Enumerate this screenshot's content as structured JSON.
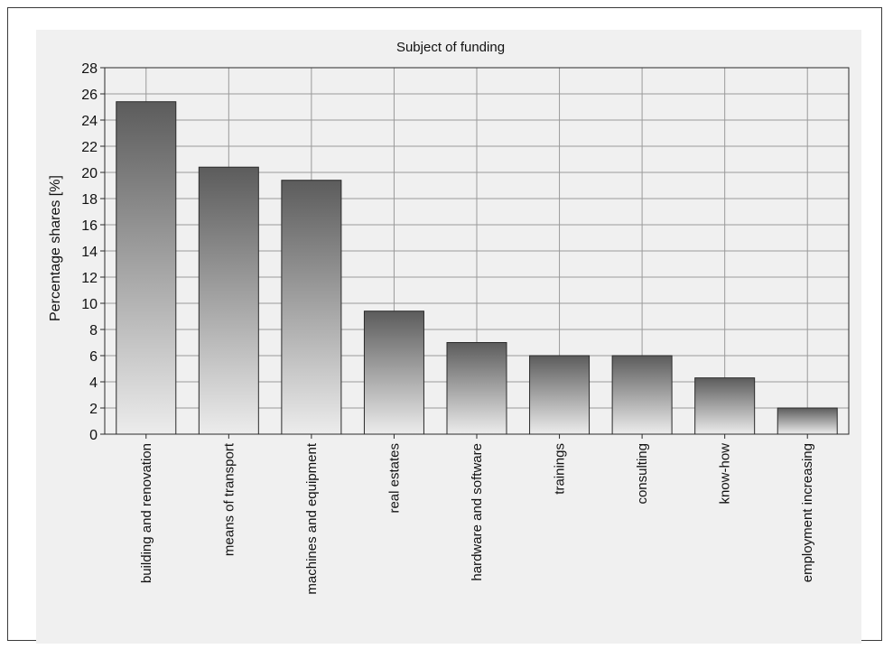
{
  "chart_data": {
    "type": "bar",
    "title": "Subject of funding",
    "xlabel": "",
    "ylabel": "Percentage shares [%]",
    "ylim": [
      0,
      28
    ],
    "yticks": [
      0,
      2,
      4,
      6,
      8,
      10,
      12,
      14,
      16,
      18,
      20,
      22,
      24,
      26,
      28
    ],
    "grid": true,
    "categories": [
      "building and renovation",
      "means of transport",
      "machines and equipment",
      "real estates",
      "hardware and software",
      "trainings",
      "consulting",
      "know-how",
      "employment increasing"
    ],
    "values": [
      25.4,
      20.4,
      19.4,
      9.4,
      7.0,
      6.0,
      6.0,
      4.3,
      2.0
    ],
    "colors": {
      "bar_top": "#5c5c5c",
      "bar_bottom": "#ececec",
      "panel": "#f0f0f0",
      "grid": "#9a9a9a",
      "border": "#2a2a2a"
    }
  }
}
